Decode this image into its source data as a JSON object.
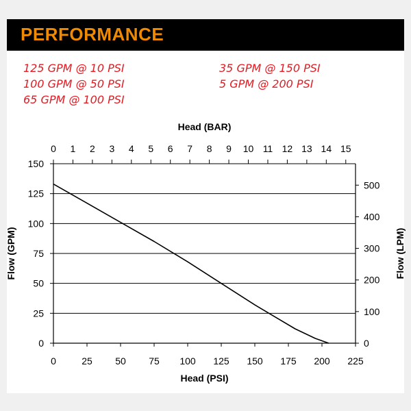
{
  "header": {
    "title": "PERFORMANCE"
  },
  "ratings": [
    "125 GPM @ 10 PSI",
    "100 GPM @ 50 PSI",
    "65 GPM @ 100 PSI",
    "35 GPM @ 150 PSI",
    "5 GPM @ 200 PSI"
  ],
  "colors": {
    "header_bg": "#000000",
    "title": "#f08a00",
    "rating_text": "#e31b23",
    "curve": "#000000"
  },
  "chart_data": {
    "type": "line",
    "title": "",
    "xlabel": "Head (PSI)",
    "ylabel": "Flow (GPM)",
    "x2label": "Head (BAR)",
    "y2label": "Flow (LPM)",
    "xlim": [
      0,
      225
    ],
    "ylim": [
      0,
      150
    ],
    "x2lim": [
      0,
      15.5
    ],
    "y2lim": [
      0,
      567.8
    ],
    "xticks": [
      0,
      25,
      50,
      75,
      100,
      125,
      150,
      175,
      200,
      225
    ],
    "yticks": [
      0,
      25,
      50,
      75,
      100,
      125,
      150
    ],
    "x2ticks": [
      0,
      1,
      2,
      3,
      4,
      5,
      6,
      7,
      8,
      9,
      10,
      11,
      12,
      13,
      14,
      15
    ],
    "y2ticks": [
      0,
      100,
      200,
      300,
      400,
      500
    ],
    "grid": true,
    "series": [
      {
        "x": [
          0,
          25,
          50,
          75,
          100,
          125,
          150,
          165,
          180,
          195,
          205
        ],
        "y": [
          133,
          117,
          101,
          85,
          68,
          50,
          32,
          22,
          12,
          4,
          0
        ]
      }
    ]
  }
}
